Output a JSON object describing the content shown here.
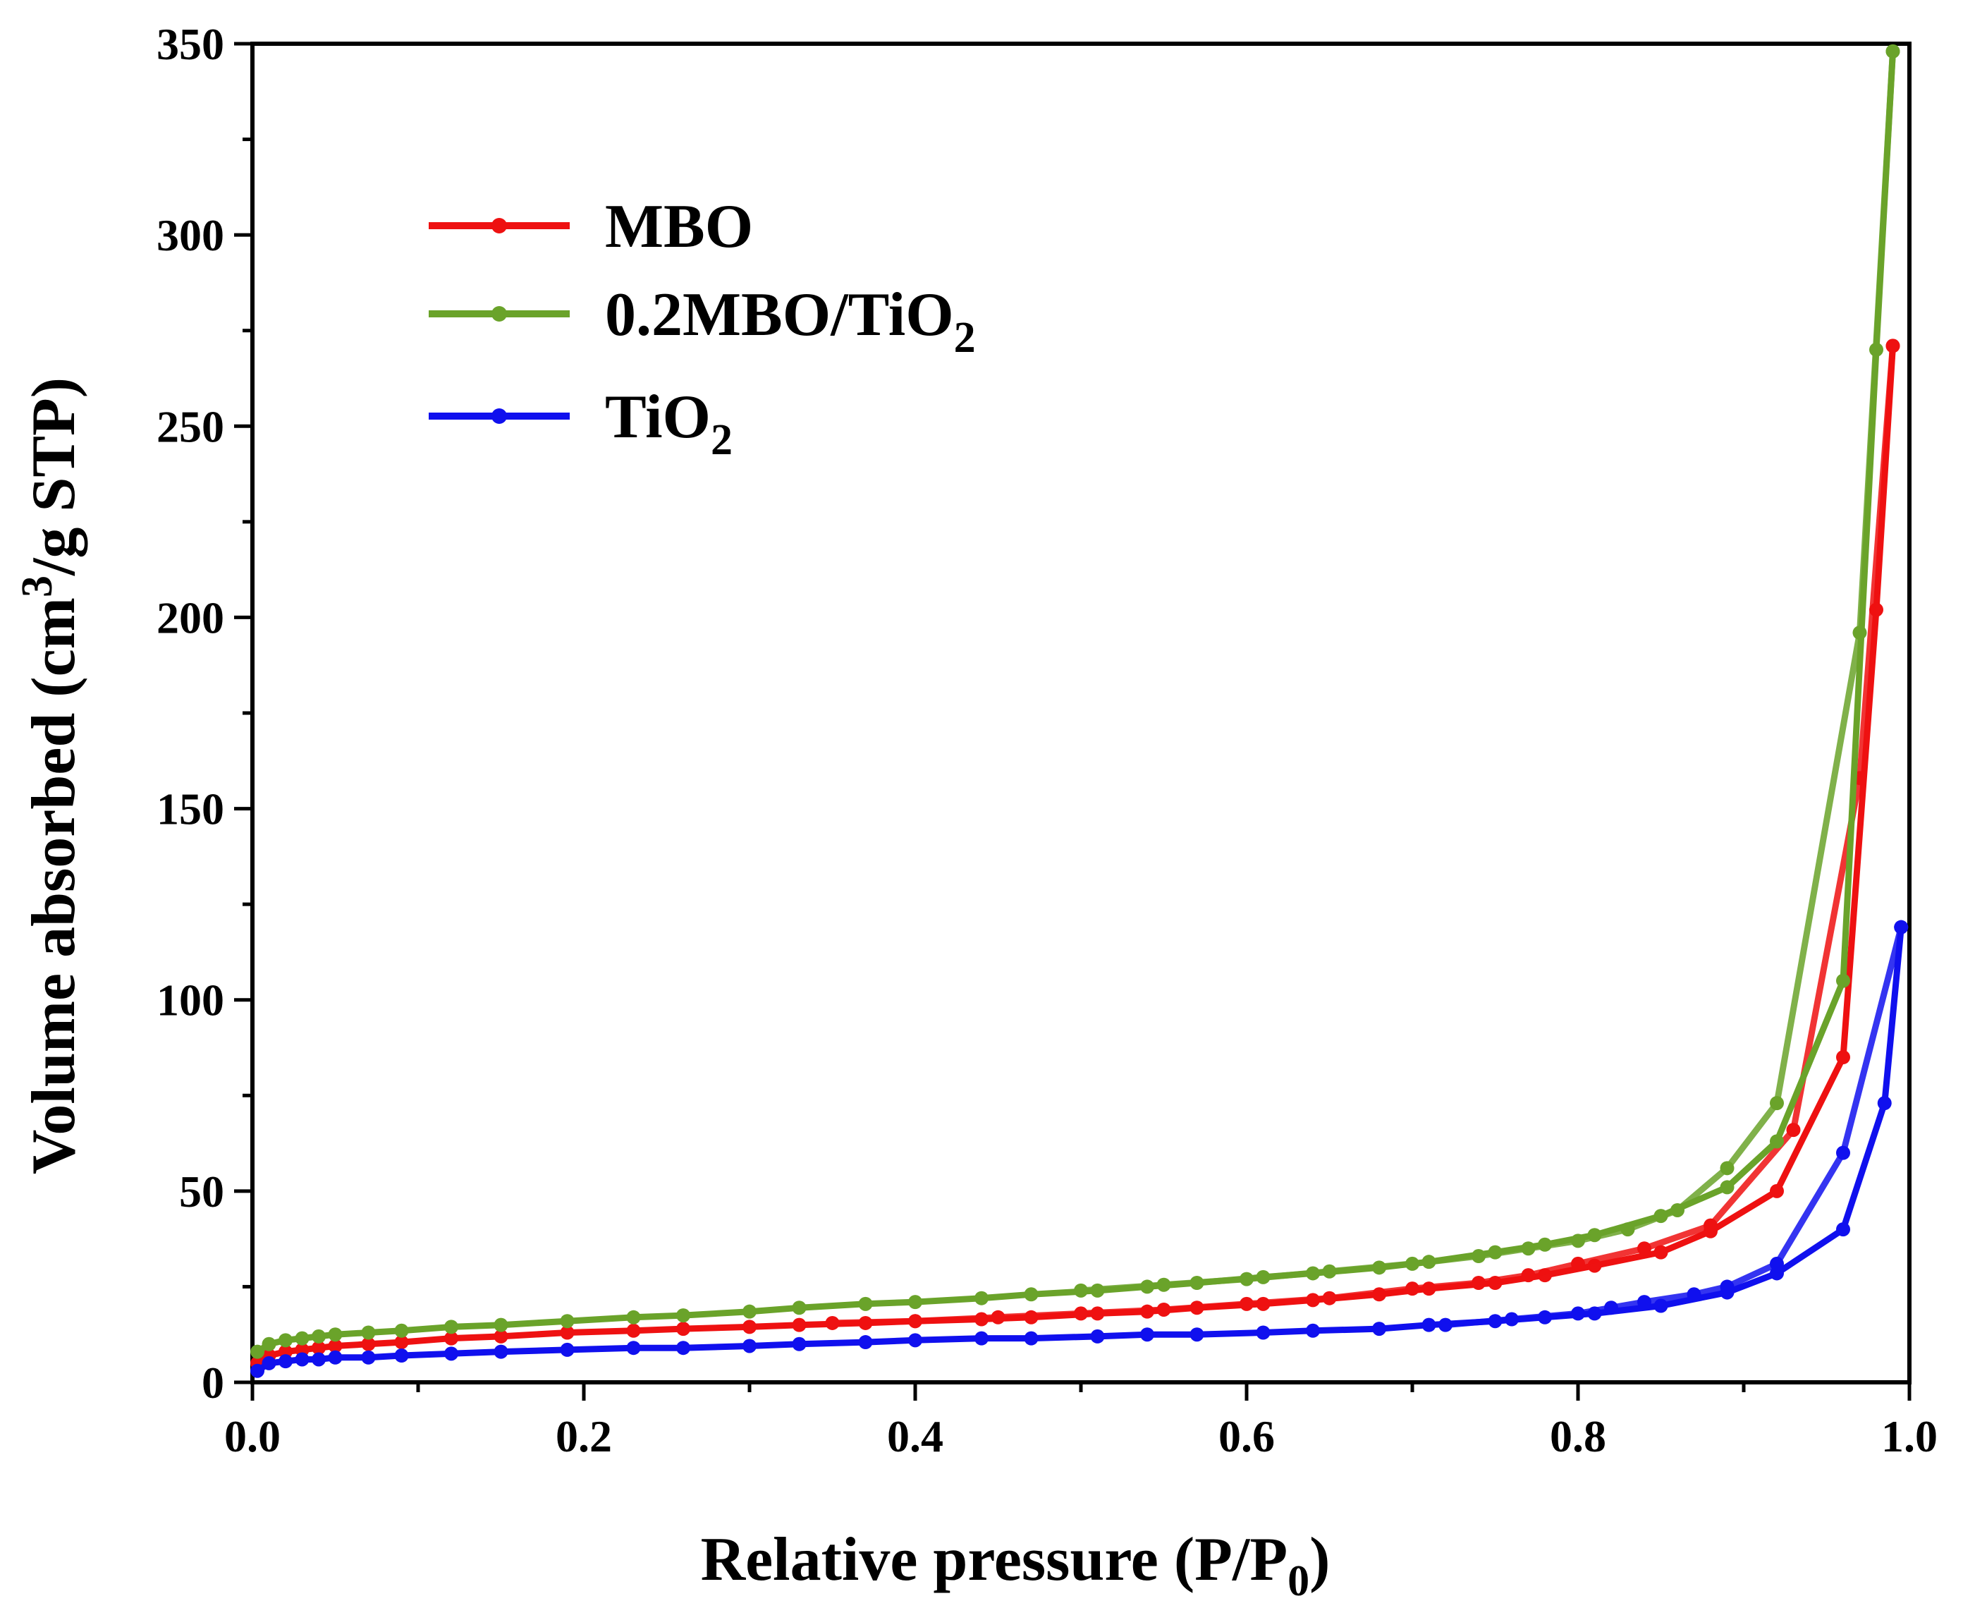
{
  "chart_data": {
    "type": "line",
    "title": "",
    "xlabel": "Relative pressure (P/P0)",
    "ylabel": "Volume absorbed (cm3/g STP)",
    "xlim": [
      0,
      1.0
    ],
    "ylim": [
      0,
      350
    ],
    "xticks": [
      "0.0",
      "0.2",
      "0.4",
      "0.6",
      "0.8",
      "1.0"
    ],
    "yticks": [
      "0",
      "50",
      "100",
      "150",
      "200",
      "250",
      "300",
      "350"
    ],
    "legend_position": "top-left",
    "grid": false,
    "series": [
      {
        "name": "MBO",
        "legend_label": {
          "main": "MBO",
          "sub": ""
        },
        "color": "#ee1111",
        "adsorption": {
          "x": [
            0.003,
            0.01,
            0.02,
            0.03,
            0.04,
            0.05,
            0.07,
            0.09,
            0.12,
            0.15,
            0.19,
            0.23,
            0.26,
            0.3,
            0.33,
            0.37,
            0.4,
            0.44,
            0.47,
            0.51,
            0.54,
            0.57,
            0.61,
            0.64,
            0.68,
            0.71,
            0.75,
            0.78,
            0.81,
            0.85,
            0.88,
            0.92,
            0.96,
            0.98,
            0.99
          ],
          "y": [
            5,
            7,
            8,
            8.5,
            9,
            9.5,
            10,
            10.5,
            11.5,
            12,
            13,
            13.5,
            14,
            14.5,
            15,
            15.5,
            16,
            16.5,
            17,
            18,
            18.5,
            19.5,
            20.5,
            21.5,
            23,
            24.5,
            26,
            28,
            30.5,
            34,
            39.5,
            50,
            85,
            202,
            271
          ]
        },
        "desorption": {
          "x": [
            0.99,
            0.97,
            0.93,
            0.88,
            0.84,
            0.8,
            0.77,
            0.74,
            0.7,
            0.65,
            0.6,
            0.55,
            0.5,
            0.45,
            0.4,
            0.35
          ],
          "y": [
            271,
            158,
            66,
            41,
            35,
            31,
            28,
            26,
            24.5,
            22,
            20.5,
            19,
            18,
            17,
            16,
            15.5
          ]
        }
      },
      {
        "name": "0.2MBO/TiO2",
        "legend_label": {
          "main": "0.2MBO/TiO",
          "sub": "2"
        },
        "color": "#6aa32a",
        "adsorption": {
          "x": [
            0.003,
            0.01,
            0.02,
            0.03,
            0.04,
            0.05,
            0.07,
            0.09,
            0.12,
            0.15,
            0.19,
            0.23,
            0.26,
            0.3,
            0.33,
            0.37,
            0.4,
            0.44,
            0.47,
            0.51,
            0.54,
            0.57,
            0.61,
            0.64,
            0.68,
            0.71,
            0.75,
            0.78,
            0.81,
            0.85,
            0.89,
            0.92,
            0.96,
            0.98,
            0.99
          ],
          "y": [
            8,
            10,
            11,
            11.5,
            12,
            12.5,
            13,
            13.5,
            14.5,
            15,
            16,
            17,
            17.5,
            18.5,
            19.5,
            20.5,
            21,
            22,
            23,
            24,
            25,
            26,
            27.5,
            28.5,
            30,
            31.5,
            34,
            36,
            38.5,
            43.5,
            51,
            63,
            105,
            270,
            348
          ]
        },
        "desorption": {
          "x": [
            0.99,
            0.97,
            0.92,
            0.89,
            0.86,
            0.83,
            0.8,
            0.77,
            0.74,
            0.7,
            0.65,
            0.6,
            0.55,
            0.5
          ],
          "y": [
            348,
            196,
            73,
            56,
            45,
            40,
            37,
            35,
            33,
            31,
            29,
            27,
            25.5,
            24
          ]
        }
      },
      {
        "name": "TiO2",
        "legend_label": {
          "main": "TiO",
          "sub": "2"
        },
        "color": "#1010ee",
        "adsorption": {
          "x": [
            0.003,
            0.01,
            0.02,
            0.03,
            0.04,
            0.05,
            0.07,
            0.09,
            0.12,
            0.15,
            0.19,
            0.23,
            0.26,
            0.3,
            0.33,
            0.37,
            0.4,
            0.44,
            0.47,
            0.51,
            0.54,
            0.57,
            0.61,
            0.64,
            0.68,
            0.71,
            0.75,
            0.78,
            0.81,
            0.85,
            0.89,
            0.92,
            0.96,
            0.985,
            0.995
          ],
          "y": [
            3,
            5,
            5.5,
            6,
            6,
            6.5,
            6.5,
            7,
            7.5,
            8,
            8.5,
            9,
            9,
            9.5,
            10,
            10.5,
            11,
            11.5,
            11.5,
            12,
            12.5,
            12.5,
            13,
            13.5,
            14,
            15,
            16,
            17,
            18,
            20,
            23.5,
            28.5,
            40,
            73,
            119
          ]
        },
        "desorption": {
          "x": [
            0.995,
            0.96,
            0.92,
            0.89,
            0.87,
            0.84,
            0.82,
            0.8,
            0.76,
            0.72
          ],
          "y": [
            119,
            60,
            31,
            25,
            23,
            21,
            19.5,
            18,
            16.5,
            15
          ]
        }
      }
    ]
  }
}
